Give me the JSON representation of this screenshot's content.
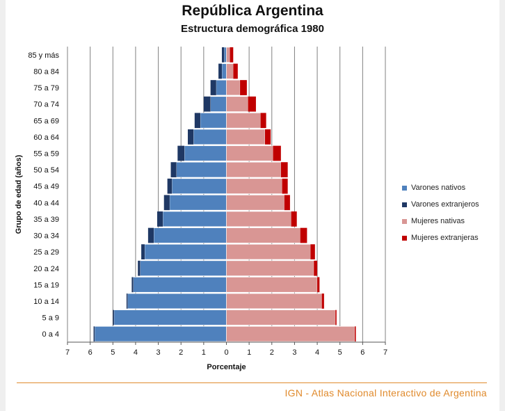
{
  "header": {
    "title": "República Argentina",
    "subtitle": "Estructura demográfica 1980"
  },
  "footer": {
    "text": "IGN - Atlas Nacional Interactivo de Argentina"
  },
  "colors": {
    "varones_nativos": "#4f81bd",
    "varones_extranjeros": "#1f3864",
    "mujeres_nativas": "#d99694",
    "mujeres_extranjeras": "#c00000",
    "grid": "#808080",
    "footer": "#e08a2c"
  },
  "chart_data": {
    "type": "bar",
    "orientation": "horizontal-population-pyramid",
    "xlabel": "Porcentaje",
    "ylabel": "Grupo de edad (años)",
    "xlim": [
      -7,
      7
    ],
    "xticks": [
      "7",
      "6",
      "5",
      "4",
      "3",
      "2",
      "1",
      "0",
      "1",
      "2",
      "3",
      "4",
      "5",
      "6",
      "7"
    ],
    "categories": [
      "0 a 4",
      "5 a 9",
      "10 a 14",
      "15 a 19",
      "20 a 24",
      "25 a 29",
      "30 a 34",
      "35 a 39",
      "40 a 44",
      "45 a 49",
      "50 a 54",
      "55 a 59",
      "60 a 64",
      "65 a 69",
      "70 a 74",
      "75 a 79",
      "80 a 84",
      "85 y más"
    ],
    "grid": true,
    "legend_position": "right",
    "stacking": "stacked outward from 0: nativos then extranjeros",
    "series": [
      {
        "name": "Varones nativos",
        "side": "left",
        "values": [
          5.8,
          4.95,
          4.35,
          4.1,
          3.8,
          3.6,
          3.2,
          2.8,
          2.5,
          2.4,
          2.2,
          1.85,
          1.45,
          1.15,
          0.7,
          0.45,
          0.2,
          0.1
        ]
      },
      {
        "name": "Varones extranjeros",
        "side": "left",
        "values": [
          0.05,
          0.05,
          0.05,
          0.07,
          0.1,
          0.15,
          0.25,
          0.25,
          0.25,
          0.2,
          0.25,
          0.3,
          0.25,
          0.25,
          0.3,
          0.25,
          0.15,
          0.1
        ]
      },
      {
        "name": "Mujeres nativas",
        "side": "right",
        "values": [
          5.65,
          4.8,
          4.2,
          4.0,
          3.85,
          3.7,
          3.25,
          2.85,
          2.55,
          2.45,
          2.4,
          2.05,
          1.7,
          1.5,
          0.95,
          0.6,
          0.3,
          0.15
        ]
      },
      {
        "name": "Mujeres extranjeras",
        "side": "right",
        "values": [
          0.05,
          0.05,
          0.1,
          0.1,
          0.15,
          0.2,
          0.3,
          0.25,
          0.25,
          0.25,
          0.3,
          0.35,
          0.25,
          0.25,
          0.35,
          0.3,
          0.2,
          0.15
        ]
      }
    ]
  }
}
